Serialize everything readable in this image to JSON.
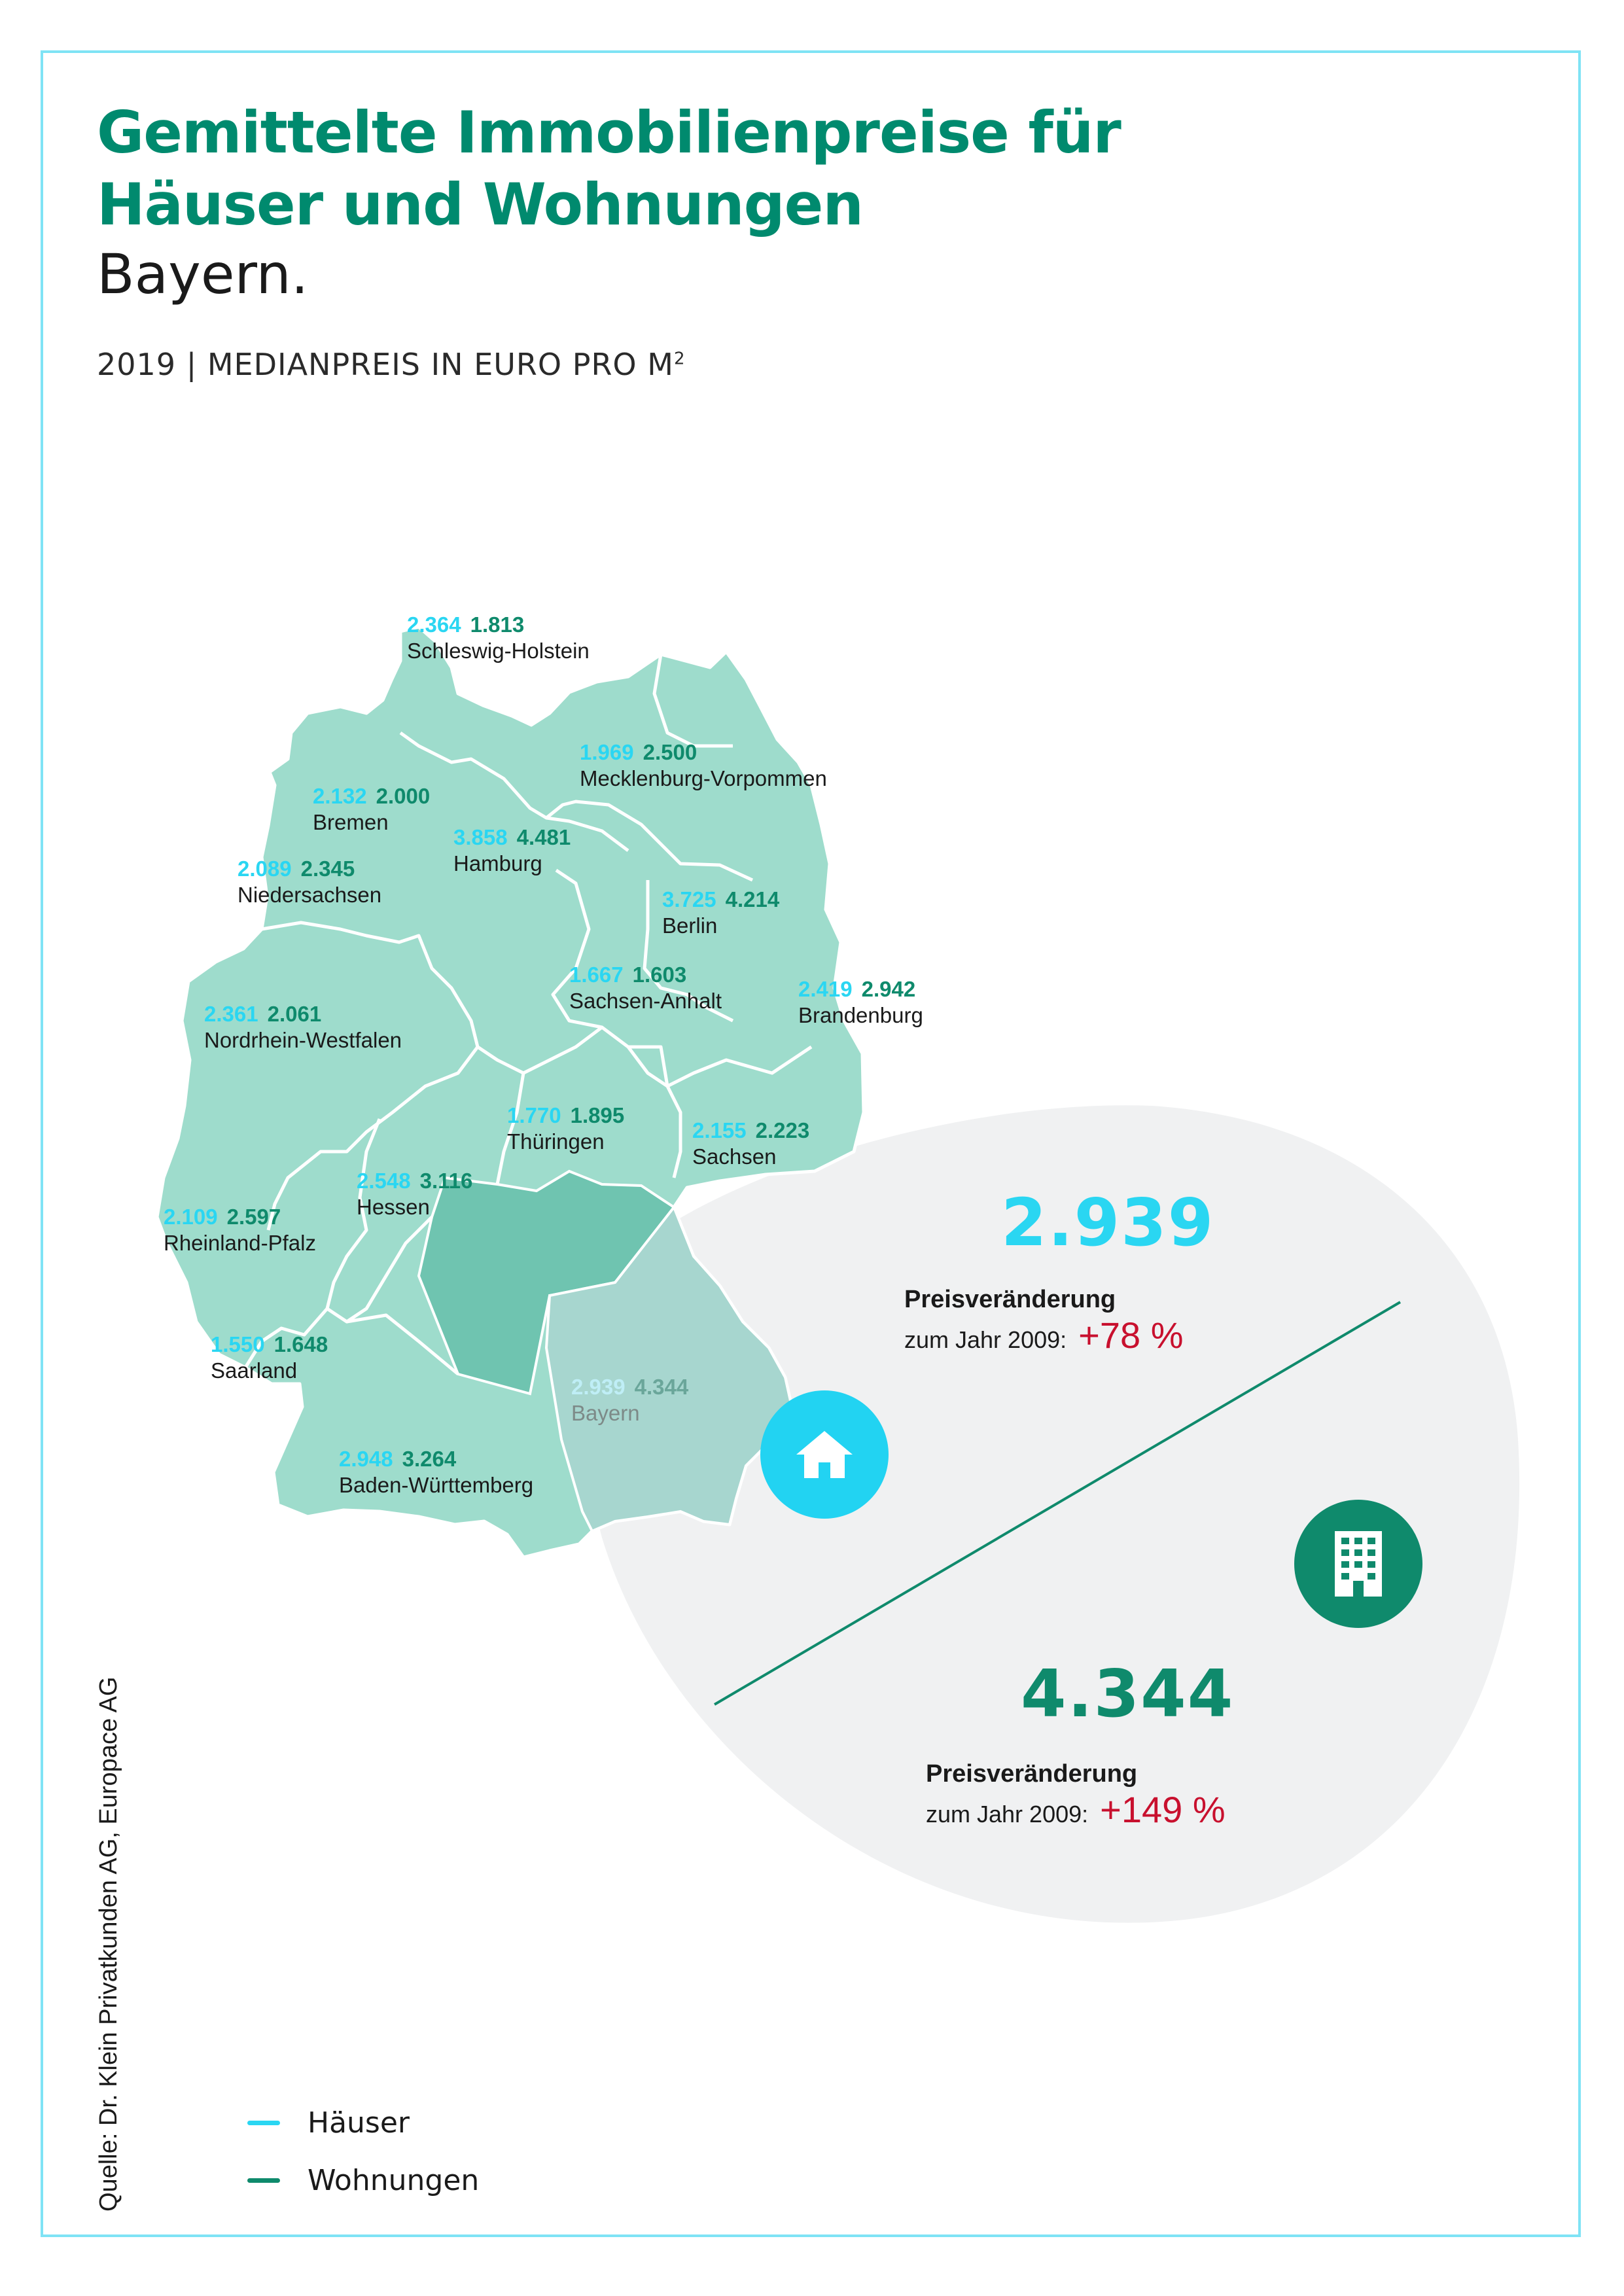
{
  "title_lines": [
    "Gemittelte Immobilienpreise für",
    "Häuser und Wohnungen"
  ],
  "region": "Bayern.",
  "subtitle": {
    "year": "2019",
    "separator": "|",
    "metric": "MEDIANPREIS IN EURO PRO M",
    "unit_sup": "2"
  },
  "colors": {
    "haeuser": "#2ad6f2",
    "wohnungen": "#0f8a6c",
    "title": "#008a6e",
    "map_fill": "#9edccc",
    "map_highlight": "#6fc4b0",
    "bayern_fill": "#a7d6cf",
    "bubble": "#f0f1f2",
    "change_positive": "#c8102e"
  },
  "states": [
    {
      "name": "Schleswig-Holstein",
      "haeuser": "2.364",
      "wohnungen": "1.813"
    },
    {
      "name": "Mecklenburg-Vorpommen",
      "haeuser": "1.969",
      "wohnungen": "2.500"
    },
    {
      "name": "Bremen",
      "haeuser": "2.132",
      "wohnungen": "2.000"
    },
    {
      "name": "Hamburg",
      "haeuser": "3.858",
      "wohnungen": "4.481"
    },
    {
      "name": "Niedersachsen",
      "haeuser": "2.089",
      "wohnungen": "2.345"
    },
    {
      "name": "Berlin",
      "haeuser": "3.725",
      "wohnungen": "4.214"
    },
    {
      "name": "Sachsen-Anhalt",
      "haeuser": "1.667",
      "wohnungen": "1.603"
    },
    {
      "name": "Brandenburg",
      "haeuser": "2.419",
      "wohnungen": "2.942"
    },
    {
      "name": "Nordrhein-Westfalen",
      "haeuser": "2.361",
      "wohnungen": "2.061"
    },
    {
      "name": "Thüringen",
      "haeuser": "1.770",
      "wohnungen": "1.895"
    },
    {
      "name": "Sachsen",
      "haeuser": "2.155",
      "wohnungen": "2.223"
    },
    {
      "name": "Hessen",
      "haeuser": "2.548",
      "wohnungen": "3.116"
    },
    {
      "name": "Rheinland-Pfalz",
      "haeuser": "2.109",
      "wohnungen": "2.597"
    },
    {
      "name": "Saarland",
      "haeuser": "1.550",
      "wohnungen": "1.648"
    },
    {
      "name": "Bayern",
      "haeuser": "2.939",
      "wohnungen": "4.344"
    },
    {
      "name": "Baden-Württemberg",
      "haeuser": "2.948",
      "wohnungen": "3.264"
    }
  ],
  "highlight": {
    "haeuser": {
      "value": "2.939",
      "change_label": "Preisveränderung",
      "change_sub": "zum Jahr 2009:",
      "change": "+78 %",
      "icon": "house-icon"
    },
    "wohnungen": {
      "value": "4.344",
      "change_label": "Preisveränderung",
      "change_sub": "zum Jahr 2009:",
      "change": "+149 %",
      "icon": "apartment-building-icon"
    }
  },
  "legend": [
    {
      "label": "Häuser",
      "color": "#2ad6f2"
    },
    {
      "label": "Wohnungen",
      "color": "#0f8a6c"
    }
  ],
  "source": "Quelle: Dr. Klein Privatkunden AG, Europace AG"
}
